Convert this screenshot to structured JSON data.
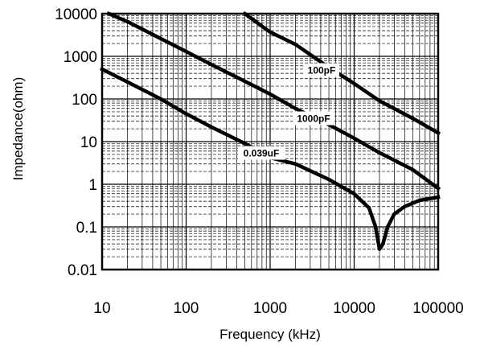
{
  "chart_data": {
    "type": "line",
    "title": "",
    "xlabel": "Frequency (kHz)",
    "ylabel": "Impedance(ohm)",
    "xscale": "log",
    "yscale": "log",
    "xlim": [
      10,
      100000
    ],
    "ylim": [
      0.01,
      10000
    ],
    "grid": true,
    "x_tick_labels": [
      "10",
      "100",
      "1000",
      "10000",
      "100000"
    ],
    "y_tick_labels": [
      "10000",
      "1000",
      "100",
      "10",
      "1",
      "0.1",
      "0.01"
    ],
    "series": [
      {
        "name": "100pF",
        "x": [
          500,
          1000,
          2000,
          5000,
          10000,
          20000,
          50000,
          100000
        ],
        "y": [
          10000,
          3700,
          1900,
          550,
          230,
          90,
          35,
          16
        ]
      },
      {
        "name": "1000pF",
        "x": [
          12,
          20,
          50,
          100,
          200,
          500,
          1000,
          2000,
          5000,
          10000,
          20000,
          50000,
          100000
        ],
        "y": [
          10000,
          6500,
          2600,
          1300,
          640,
          260,
          130,
          60,
          25,
          12,
          5.5,
          2.2,
          0.8
        ]
      },
      {
        "name": "0.039uF",
        "x": [
          10,
          20,
          50,
          100,
          200,
          500,
          1000,
          2000,
          5000,
          10000,
          15000,
          18000,
          20000,
          22000,
          25000,
          30000,
          40000,
          60000,
          100000
        ],
        "y": [
          500,
          250,
          100,
          45,
          22,
          9,
          4.2,
          3,
          1.3,
          0.6,
          0.28,
          0.1,
          0.03,
          0.04,
          0.1,
          0.2,
          0.3,
          0.42,
          0.5
        ]
      }
    ],
    "annotations": [
      {
        "text": "100pF",
        "series": "100pF"
      },
      {
        "text": "1000pF",
        "series": "1000pF"
      },
      {
        "text": "0.039uF",
        "series": "0.039uF"
      }
    ]
  }
}
